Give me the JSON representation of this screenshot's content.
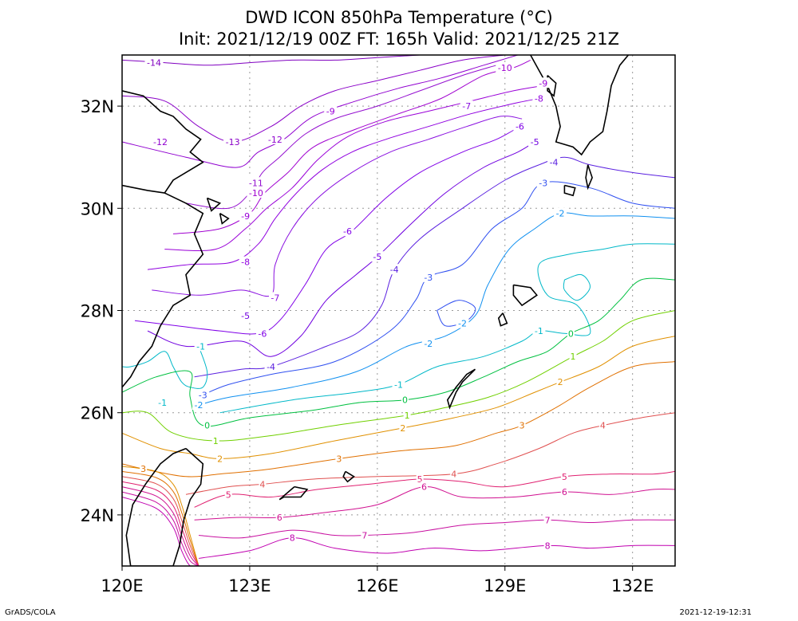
{
  "title_line1": "DWD ICON 850hPa Temperature (°C)",
  "title_line2": "Init: 2021/12/19 00Z  FT: 165h  Valid: 2021/12/25 21Z",
  "footer_left": "GrADS/COLA",
  "footer_right": "2021-12-19-12:31",
  "map": {
    "lon_range": [
      120,
      133
    ],
    "lat_range": [
      23,
      33
    ],
    "x_ticks": [
      {
        "lon": 120,
        "label": "120E"
      },
      {
        "lon": 123,
        "label": "123E"
      },
      {
        "lon": 126,
        "label": "126E"
      },
      {
        "lon": 129,
        "label": "129E"
      },
      {
        "lon": 132,
        "label": "132E"
      }
    ],
    "y_ticks": [
      {
        "lat": 24,
        "label": "24N"
      },
      {
        "lat": 26,
        "label": "26N"
      },
      {
        "lat": 28,
        "label": "28N"
      },
      {
        "lat": 30,
        "label": "30N"
      },
      {
        "lat": 32,
        "label": "32N"
      }
    ],
    "grid_dotted": true
  },
  "contour_colors": {
    "-14": "#8000c0",
    "-13": "#8a00c8",
    "-12": "#9000d0",
    "-11": "#9410d0",
    "-10": "#a000d0",
    "-9": "#9a00d8",
    "-8": "#9000e0",
    "-7": "#8a10e0",
    "-6": "#8000e8",
    "-5": "#7000e0",
    "-4": "#5a20e0",
    "-3": "#3050f0",
    "-2": "#1090f0",
    "-1": "#00b8c8",
    "0": "#00c040",
    "1": "#70d000",
    "2": "#e09000",
    "3": "#e07000",
    "4": "#e05050",
    "5": "#e02070",
    "6": "#d01090",
    "7": "#c810a0",
    "8": "#c000b0"
  },
  "contour_labels": [
    {
      "v": "-14",
      "lon": 120.75,
      "lat": 32.85
    },
    {
      "v": "-12",
      "lon": 120.9,
      "lat": 31.3
    },
    {
      "v": "-13",
      "lon": 122.6,
      "lat": 31.3
    },
    {
      "v": "-12",
      "lon": 123.6,
      "lat": 31.35
    },
    {
      "v": "-11",
      "lon": 123.15,
      "lat": 30.5
    },
    {
      "v": "-10",
      "lon": 123.15,
      "lat": 30.3
    },
    {
      "v": "-9",
      "lon": 122.9,
      "lat": 29.85
    },
    {
      "v": "-9",
      "lon": 124.9,
      "lat": 31.9
    },
    {
      "v": "-8",
      "lon": 122.9,
      "lat": 28.95
    },
    {
      "v": "-7",
      "lon": 123.6,
      "lat": 28.25
    },
    {
      "v": "-6",
      "lon": 125.3,
      "lat": 29.55
    },
    {
      "v": "-5",
      "lon": 122.9,
      "lat": 27.9
    },
    {
      "v": "-5",
      "lon": 126.0,
      "lat": 29.05
    },
    {
      "v": "-6",
      "lon": 123.3,
      "lat": 27.55
    },
    {
      "v": "-4",
      "lon": 126.4,
      "lat": 28.8
    },
    {
      "v": "-4",
      "lon": 123.5,
      "lat": 26.9
    },
    {
      "v": "-3",
      "lon": 127.2,
      "lat": 28.65
    },
    {
      "v": "-2",
      "lon": 128.0,
      "lat": 27.75
    },
    {
      "v": "-2",
      "lon": 127.2,
      "lat": 27.35
    },
    {
      "v": "-3",
      "lon": 121.9,
      "lat": 26.35
    },
    {
      "v": "-2",
      "lon": 121.8,
      "lat": 26.15
    },
    {
      "v": "-1",
      "lon": 121.85,
      "lat": 27.3
    },
    {
      "v": "-1",
      "lon": 120.95,
      "lat": 26.2
    },
    {
      "v": "-1",
      "lon": 126.5,
      "lat": 26.55
    },
    {
      "v": "-1",
      "lon": 129.8,
      "lat": 27.6
    },
    {
      "v": "0",
      "lon": 122.0,
      "lat": 25.75
    },
    {
      "v": "0",
      "lon": 126.65,
      "lat": 26.25
    },
    {
      "v": "0",
      "lon": 130.55,
      "lat": 27.55
    },
    {
      "v": "1",
      "lon": 122.2,
      "lat": 25.45
    },
    {
      "v": "1",
      "lon": 126.7,
      "lat": 25.95
    },
    {
      "v": "1",
      "lon": 130.6,
      "lat": 27.1
    },
    {
      "v": "2",
      "lon": 122.3,
      "lat": 25.1
    },
    {
      "v": "2",
      "lon": 126.6,
      "lat": 25.7
    },
    {
      "v": "2",
      "lon": 130.3,
      "lat": 26.6
    },
    {
      "v": "3",
      "lon": 120.5,
      "lat": 24.9
    },
    {
      "v": "3",
      "lon": 125.1,
      "lat": 25.1
    },
    {
      "v": "3",
      "lon": 129.4,
      "lat": 25.75
    },
    {
      "v": "4",
      "lon": 123.3,
      "lat": 24.6
    },
    {
      "v": "4",
      "lon": 127.8,
      "lat": 24.8
    },
    {
      "v": "4",
      "lon": 131.3,
      "lat": 25.75
    },
    {
      "v": "5",
      "lon": 122.5,
      "lat": 24.4
    },
    {
      "v": "5",
      "lon": 127.0,
      "lat": 24.7
    },
    {
      "v": "5",
      "lon": 130.4,
      "lat": 24.75
    },
    {
      "v": "6",
      "lon": 123.7,
      "lat": 23.95
    },
    {
      "v": "6",
      "lon": 127.1,
      "lat": 24.55
    },
    {
      "v": "6",
      "lon": 130.4,
      "lat": 24.45
    },
    {
      "v": "7",
      "lon": 125.7,
      "lat": 23.6
    },
    {
      "v": "7",
      "lon": 130.0,
      "lat": 23.9
    },
    {
      "v": "8",
      "lon": 124.0,
      "lat": 23.55
    },
    {
      "v": "8",
      "lon": 130.0,
      "lat": 23.4
    },
    {
      "v": "-10",
      "lon": 129.0,
      "lat": 32.75
    },
    {
      "v": "-9",
      "lon": 129.9,
      "lat": 32.45
    },
    {
      "v": "-8",
      "lon": 129.8,
      "lat": 32.15
    },
    {
      "v": "-7",
      "lon": 128.1,
      "lat": 32.0
    },
    {
      "v": "-6",
      "lon": 129.35,
      "lat": 31.6
    },
    {
      "v": "-5",
      "lon": 129.7,
      "lat": 31.3
    },
    {
      "v": "-4",
      "lon": 130.15,
      "lat": 30.9
    },
    {
      "v": "-3",
      "lon": 129.9,
      "lat": 30.5
    },
    {
      "v": "-2",
      "lon": 130.3,
      "lat": 29.9
    }
  ]
}
